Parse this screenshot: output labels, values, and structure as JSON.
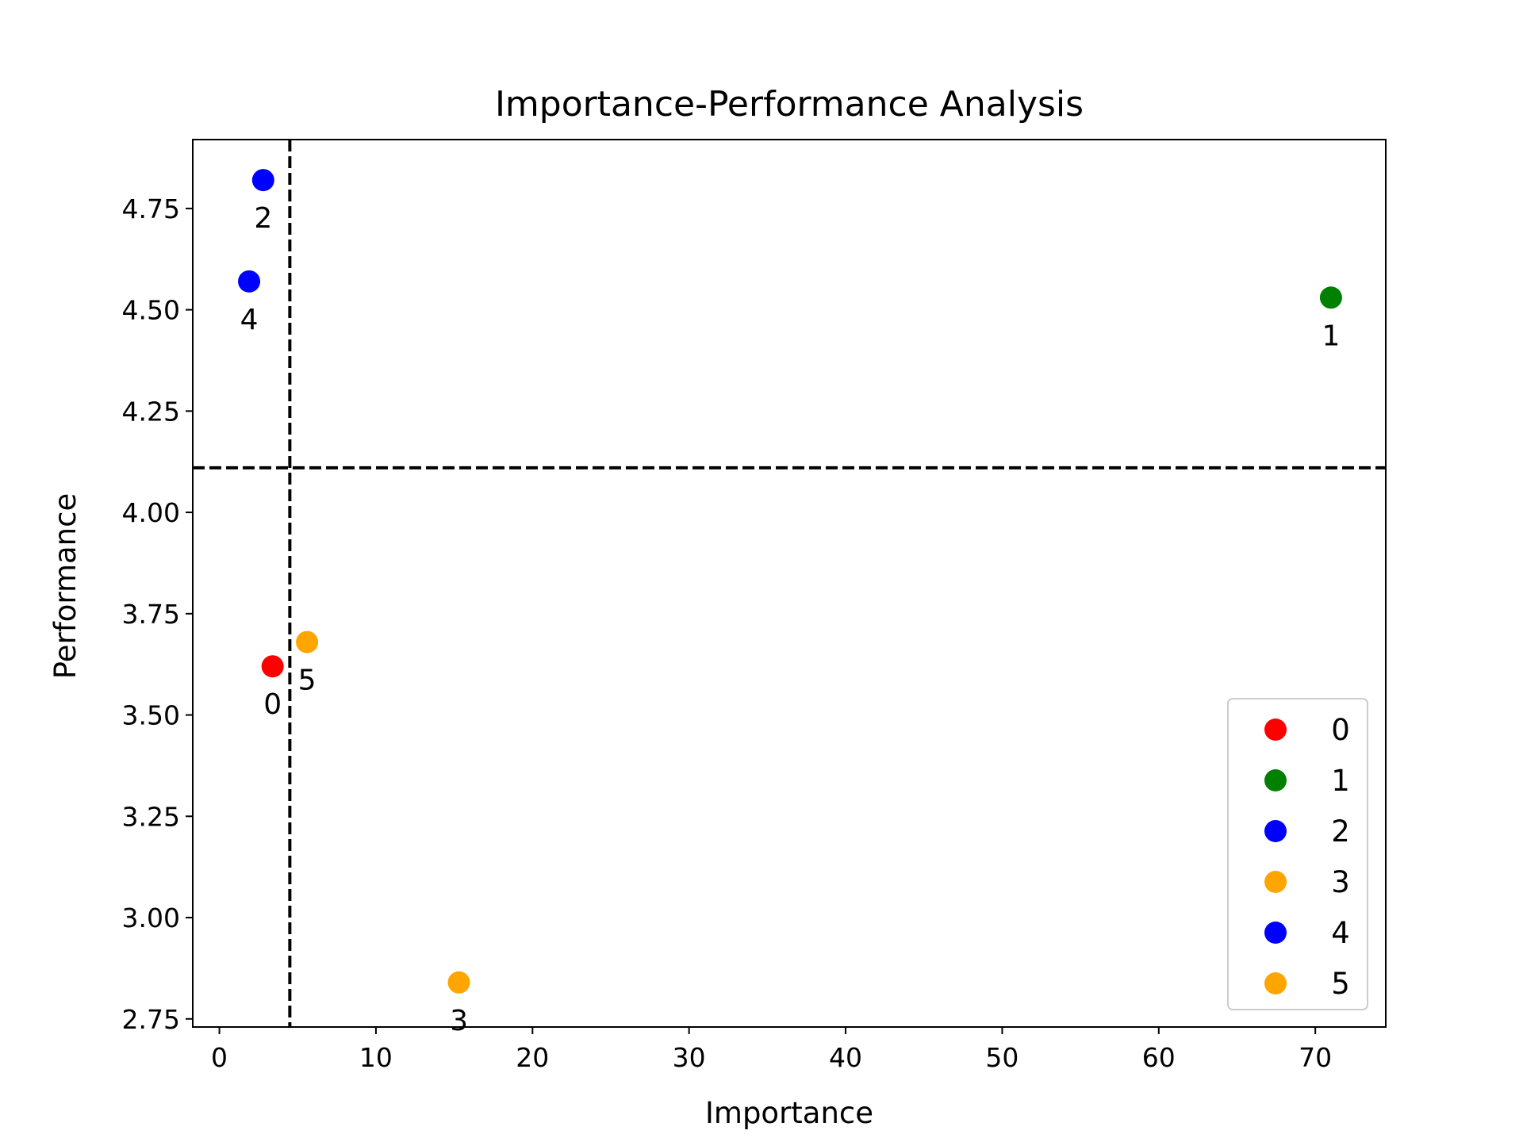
{
  "chart_data": {
    "type": "scatter",
    "title": "Importance-Performance Analysis",
    "xlabel": "Importance",
    "ylabel": "Performance",
    "xlim": [
      -1.7,
      74.5
    ],
    "ylim": [
      2.73,
      4.92
    ],
    "xticks": [
      0,
      10,
      20,
      30,
      40,
      50,
      60,
      70
    ],
    "yticks": [
      2.75,
      3.0,
      3.25,
      3.5,
      3.75,
      4.0,
      4.25,
      4.5,
      4.75
    ],
    "xtick_labels": [
      "0",
      "10",
      "20",
      "30",
      "40",
      "50",
      "60",
      "70"
    ],
    "ytick_labels": [
      "2.75",
      "3.00",
      "3.25",
      "3.50",
      "3.75",
      "4.00",
      "4.25",
      "4.50",
      "4.75"
    ],
    "grid": false,
    "legend_position": "lower-right",
    "reference_lines": {
      "x": 4.5,
      "y": 4.11,
      "style": "dashed",
      "color": "#000000"
    },
    "points": [
      {
        "label": "0",
        "x": 3.4,
        "y": 3.62,
        "color": "#ff0000"
      },
      {
        "label": "1",
        "x": 71.0,
        "y": 4.53,
        "color": "#008000"
      },
      {
        "label": "2",
        "x": 2.8,
        "y": 4.82,
        "color": "#0000ff"
      },
      {
        "label": "3",
        "x": 15.3,
        "y": 2.84,
        "color": "#ffa500"
      },
      {
        "label": "4",
        "x": 1.9,
        "y": 4.57,
        "color": "#0000ff"
      },
      {
        "label": "5",
        "x": 5.6,
        "y": 3.68,
        "color": "#ffa500"
      }
    ]
  }
}
